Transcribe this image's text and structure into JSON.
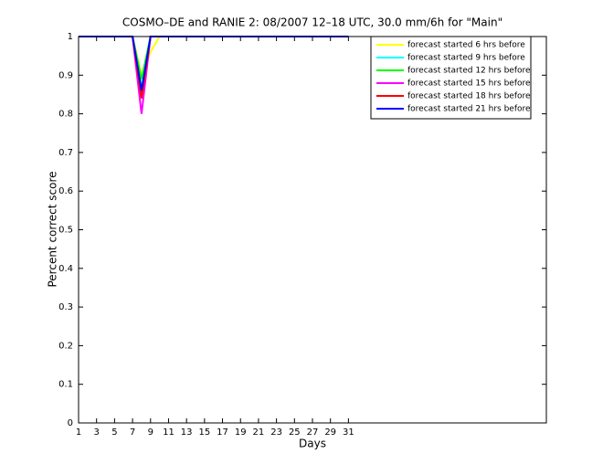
{
  "chart_data": {
    "type": "line",
    "title": "COSMO–DE and RANIE 2: 08/2007 12–18 UTC, 30.0 mm/6h for \"Main\"",
    "x_label": "Days",
    "y_label": "Percent correct score",
    "x": [
      1,
      2,
      3,
      4,
      5,
      6,
      7,
      8,
      9,
      10,
      11,
      12,
      13,
      14,
      15,
      16,
      17,
      18,
      19,
      20,
      21,
      22,
      23,
      24,
      25,
      26,
      27,
      28,
      29,
      30,
      31
    ],
    "xlim": [
      1,
      53
    ],
    "xticks": [
      1,
      3,
      5,
      7,
      9,
      11,
      13,
      15,
      17,
      19,
      21,
      23,
      25,
      27,
      29,
      31
    ],
    "ylim": [
      0,
      1
    ],
    "yticks": [
      0,
      0.1,
      0.2,
      0.3,
      0.4,
      0.5,
      0.6,
      0.7,
      0.8,
      0.9,
      1
    ],
    "legend_position": "upper right",
    "series": [
      {
        "name": "forecast started 6 hrs before",
        "color": "#ffff00",
        "values": [
          1,
          1,
          1,
          1,
          1,
          1,
          1,
          0.9,
          0.96,
          1,
          1,
          1,
          1,
          1,
          1,
          1,
          1,
          1,
          1,
          1,
          1,
          1,
          1,
          1,
          1,
          1,
          1,
          1,
          1,
          1,
          1
        ]
      },
      {
        "name": "forecast started 9 hrs before",
        "color": "#00ffff",
        "values": [
          1,
          1,
          1,
          1,
          1,
          1,
          1,
          0.87,
          1,
          1,
          1,
          1,
          1,
          1,
          1,
          1,
          1,
          1,
          1,
          1,
          1,
          1,
          1,
          1,
          1,
          1,
          1,
          1,
          1,
          1,
          1
        ]
      },
      {
        "name": "forecast started 12 hrs before",
        "color": "#00ff00",
        "values": [
          1,
          1,
          1,
          1,
          1,
          1,
          1,
          0.89,
          1,
          1,
          1,
          1,
          1,
          1,
          1,
          1,
          1,
          1,
          1,
          1,
          1,
          1,
          1,
          1,
          1,
          1,
          1,
          1,
          1,
          1,
          1
        ]
      },
      {
        "name": "forecast started 15 hrs before",
        "color": "#ff00ff",
        "values": [
          1,
          1,
          1,
          1,
          1,
          1,
          1,
          0.8,
          1,
          1,
          1,
          1,
          1,
          1,
          1,
          1,
          1,
          1,
          1,
          1,
          1,
          1,
          1,
          1,
          1,
          1,
          1,
          1,
          1,
          1,
          1
        ]
      },
      {
        "name": "forecast started 18 hrs before",
        "color": "#ff0000",
        "values": [
          1,
          1,
          1,
          1,
          1,
          1,
          1,
          0.84,
          1,
          1,
          1,
          1,
          1,
          1,
          1,
          1,
          1,
          1,
          1,
          1,
          1,
          1,
          1,
          1,
          1,
          1,
          1,
          1,
          1,
          1,
          1
        ]
      },
      {
        "name": "forecast started 21 hrs before",
        "color": "#0000ff",
        "values": [
          1,
          1,
          1,
          1,
          1,
          1,
          1,
          0.86,
          1,
          1,
          1,
          1,
          1,
          1,
          1,
          1,
          1,
          1,
          1,
          1,
          1,
          1,
          1,
          1,
          1,
          1,
          1,
          1,
          1,
          1,
          1
        ]
      }
    ]
  }
}
